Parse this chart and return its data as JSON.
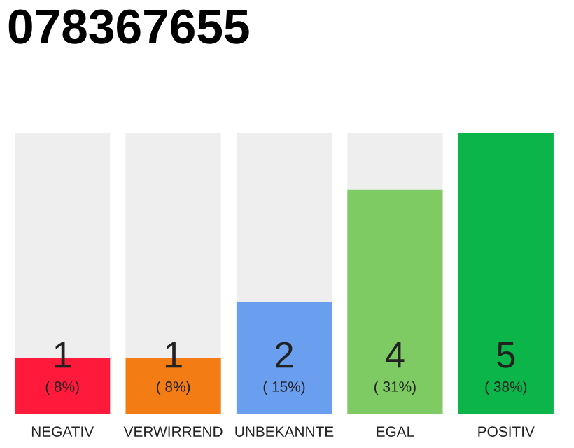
{
  "chart_data": {
    "type": "bar",
    "title": "078367655",
    "categories": [
      "NEGATIV",
      "VERWIRREND",
      "UNBEKANNTE",
      "EGAL",
      "POSITIV"
    ],
    "stacked": true,
    "series": [
      {
        "colors": [
          "#ff1a3c",
          "#f47c14",
          "#6a9ff0",
          "#7dcb62",
          "#0cb54a"
        ],
        "values": [
          1,
          1,
          2,
          4,
          5
        ],
        "value_labels": [
          "1",
          "1",
          "2",
          "4",
          "5"
        ]
      },
      {
        "color": "#eeeeee",
        "values": [
          4,
          4,
          3,
          1,
          0
        ]
      }
    ],
    "annotations": [
      "( 8%)",
      "( 8%)",
      "( 15%)",
      "( 31%)",
      "( 38%)"
    ],
    "ylim": [
      0,
      5
    ],
    "tick_labels": "x",
    "grid": false,
    "legend": false
  }
}
